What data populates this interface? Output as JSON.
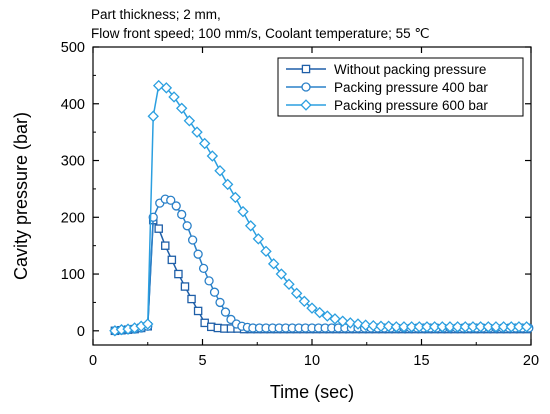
{
  "chart_data": {
    "type": "line",
    "subtitle_lines": [
      "Part thickness; 2 mm,",
      "Flow front speed; 100 mm/s, Coolant temperature; 55 ℃"
    ],
    "xlabel": "Time (sec)",
    "ylabel": "Cavity pressure (bar)",
    "xlim": [
      0,
      20
    ],
    "ylim": [
      -25,
      500
    ],
    "xticks": [
      0,
      5,
      10,
      15,
      20
    ],
    "yticks": [
      0,
      100,
      200,
      300,
      400,
      500
    ],
    "grid": false,
    "legend_position": "top-right",
    "series": [
      {
        "name": "Without packing pressure",
        "marker": "square",
        "color": "#1f5fa8",
        "x": [
          1.0,
          1.3,
          1.6,
          1.9,
          2.2,
          2.5,
          2.75,
          3.0,
          3.3,
          3.6,
          3.9,
          4.2,
          4.5,
          4.8,
          5.1,
          5.4,
          5.7,
          6.0,
          6.3,
          6.6,
          6.9,
          7.2,
          7.5,
          7.8,
          8.1,
          8.4,
          8.7,
          9.0,
          9.3,
          9.6,
          9.9,
          10.2,
          10.5,
          10.8,
          11.1,
          11.4,
          11.7,
          12.0,
          12.3,
          12.6,
          12.9,
          13.2,
          13.5,
          13.8,
          14.1,
          14.4,
          14.7,
          15.0,
          15.3,
          15.6,
          15.9,
          16.2,
          16.5,
          16.8,
          17.1,
          17.4,
          17.7,
          18.0,
          18.3,
          18.6,
          18.9,
          19.2,
          19.5,
          19.8
        ],
        "y": [
          0,
          1,
          2,
          3,
          5,
          8,
          195,
          180,
          150,
          125,
          100,
          78,
          56,
          35,
          14,
          7,
          5,
          4,
          4,
          4,
          3,
          3,
          3,
          3,
          3,
          3,
          3,
          3,
          3,
          3,
          3,
          3,
          3,
          3,
          3,
          3,
          3,
          3,
          3,
          3,
          3,
          3,
          3,
          3,
          3,
          3,
          3,
          3,
          3,
          3,
          3,
          3,
          3,
          3,
          3,
          3,
          3,
          3,
          3,
          3,
          3,
          3,
          3,
          3
        ]
      },
      {
        "name": "Packing pressure 400 bar",
        "marker": "circle",
        "color": "#2a80c8",
        "x": [
          1.0,
          1.3,
          1.6,
          1.9,
          2.2,
          2.5,
          2.75,
          3.05,
          3.3,
          3.55,
          3.8,
          4.05,
          4.3,
          4.55,
          4.8,
          5.05,
          5.3,
          5.55,
          5.8,
          6.05,
          6.3,
          6.55,
          6.8,
          7.05,
          7.3,
          7.6,
          7.9,
          8.2,
          8.5,
          8.8,
          9.1,
          9.4,
          9.7,
          10.0,
          10.3,
          10.6,
          10.9,
          11.2,
          11.5,
          11.8,
          12.1,
          12.4,
          12.7,
          13.0,
          13.3,
          13.6,
          13.9,
          14.2,
          14.5,
          14.8,
          15.1,
          15.4,
          15.7,
          16.0,
          16.3,
          16.6,
          16.9,
          17.2,
          17.5,
          17.8,
          18.1,
          18.4,
          18.7,
          19.0,
          19.3,
          19.6,
          19.9
        ],
        "y": [
          0,
          1,
          2,
          3,
          5,
          8,
          200,
          225,
          232,
          230,
          220,
          205,
          185,
          160,
          135,
          110,
          88,
          68,
          50,
          33,
          20,
          12,
          8,
          6,
          5,
          5,
          5,
          5,
          5,
          5,
          5,
          5,
          5,
          5,
          5,
          5,
          5,
          5,
          5,
          5,
          5,
          5,
          5,
          5,
          5,
          5,
          5,
          5,
          5,
          5,
          5,
          5,
          5,
          5,
          5,
          5,
          5,
          5,
          5,
          5,
          5,
          5,
          5,
          5,
          5,
          5,
          5
        ]
      },
      {
        "name": "Packing pressure 600 bar",
        "marker": "diamond",
        "color": "#2b9fe0",
        "x": [
          1.0,
          1.3,
          1.6,
          1.9,
          2.2,
          2.5,
          2.75,
          3.0,
          3.35,
          3.7,
          4.05,
          4.4,
          4.75,
          5.1,
          5.45,
          5.8,
          6.15,
          6.5,
          6.85,
          7.2,
          7.55,
          7.9,
          8.25,
          8.6,
          8.95,
          9.3,
          9.65,
          10.0,
          10.35,
          10.7,
          11.05,
          11.4,
          11.75,
          12.1,
          12.45,
          12.8,
          13.15,
          13.5,
          13.85,
          14.2,
          14.55,
          14.9,
          15.25,
          15.6,
          15.95,
          16.3,
          16.65,
          17.0,
          17.35,
          17.7,
          18.05,
          18.4,
          18.75,
          19.1,
          19.45,
          19.8
        ],
        "y": [
          0,
          2,
          3,
          5,
          8,
          12,
          378,
          432,
          428,
          412,
          392,
          370,
          350,
          330,
          308,
          282,
          258,
          235,
          210,
          185,
          162,
          140,
          118,
          100,
          82,
          66,
          52,
          40,
          32,
          26,
          21,
          17,
          14,
          12,
          10,
          9,
          8,
          8,
          7,
          7,
          7,
          7,
          7,
          7,
          7,
          7,
          7,
          7,
          7,
          7,
          7,
          7,
          7,
          7,
          7,
          7
        ]
      }
    ]
  }
}
